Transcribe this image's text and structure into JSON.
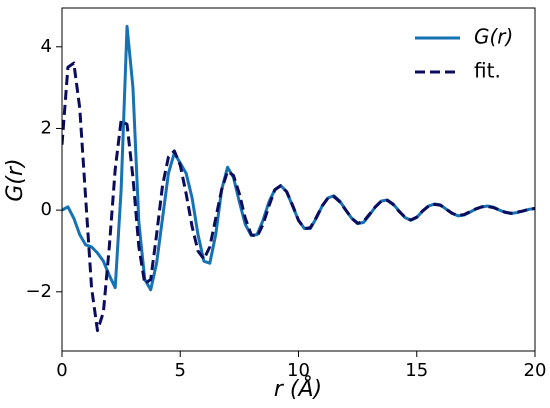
{
  "chart_data": {
    "type": "line",
    "x_label": "r (Å)",
    "y_label": "G(r)",
    "x": [
      0,
      0.25,
      0.5,
      0.75,
      1,
      1.25,
      1.5,
      1.75,
      2,
      2.25,
      2.5,
      2.75,
      3,
      3.25,
      3.5,
      3.75,
      4,
      4.25,
      4.5,
      4.75,
      5,
      5.25,
      5.5,
      5.75,
      6,
      6.25,
      6.5,
      6.75,
      7,
      7.25,
      7.5,
      7.75,
      8,
      8.25,
      8.5,
      8.75,
      9,
      9.25,
      9.5,
      9.75,
      10,
      10.25,
      10.5,
      10.75,
      11,
      11.25,
      11.5,
      11.75,
      12,
      12.25,
      12.5,
      12.75,
      13,
      13.25,
      13.5,
      13.75,
      14,
      14.25,
      14.5,
      14.75,
      15,
      15.25,
      15.5,
      15.75,
      16,
      16.25,
      16.5,
      16.75,
      17,
      17.25,
      17.5,
      17.75,
      18,
      18.25,
      18.5,
      18.75,
      19,
      19.25,
      19.5,
      19.75,
      20
    ],
    "series": [
      {
        "name": "G(r)",
        "color": "#1572b3",
        "dash": false,
        "values": [
          0,
          0.08,
          -0.2,
          -0.6,
          -0.85,
          -0.9,
          -1.05,
          -1.25,
          -1.6,
          -1.9,
          0.5,
          4.5,
          3.0,
          -0.3,
          -1.7,
          -1.95,
          -1.3,
          -0.2,
          0.9,
          1.4,
          1.15,
          0.9,
          0.3,
          -0.6,
          -1.25,
          -1.3,
          -0.6,
          0.5,
          1.05,
          0.8,
          0.2,
          -0.35,
          -0.62,
          -0.6,
          -0.25,
          0.2,
          0.5,
          0.6,
          0.45,
          0.1,
          -0.25,
          -0.45,
          -0.45,
          -0.2,
          0.1,
          0.3,
          0.35,
          0.22,
          0,
          -0.2,
          -0.33,
          -0.3,
          -0.12,
          0.08,
          0.22,
          0.25,
          0.15,
          -0.02,
          -0.18,
          -0.25,
          -0.18,
          -0.02,
          0.1,
          0.15,
          0.13,
          0.02,
          -0.08,
          -0.14,
          -0.12,
          -0.05,
          0.03,
          0.08,
          0.1,
          0.07,
          0,
          -0.06,
          -0.08,
          -0.06,
          -0.02,
          0.02,
          0.04
        ]
      },
      {
        "name": "fit.",
        "color": "#0c0c5e",
        "dash": true,
        "values": [
          1.6,
          3.5,
          3.6,
          2.5,
          0.3,
          -1.9,
          -2.95,
          -2.5,
          -0.9,
          1.0,
          2.2,
          2.1,
          0.8,
          -0.9,
          -1.8,
          -1.7,
          -0.6,
          0.6,
          1.3,
          1.45,
          1.1,
          0.4,
          -0.4,
          -1.0,
          -1.2,
          -0.9,
          -0.2,
          0.5,
          0.95,
          0.85,
          0.4,
          -0.2,
          -0.6,
          -0.65,
          -0.35,
          0.1,
          0.5,
          0.6,
          0.45,
          0.12,
          -0.25,
          -0.45,
          -0.43,
          -0.18,
          0.1,
          0.3,
          0.33,
          0.2,
          0,
          -0.2,
          -0.32,
          -0.28,
          -0.1,
          0.08,
          0.22,
          0.24,
          0.14,
          -0.03,
          -0.17,
          -0.24,
          -0.17,
          -0.02,
          0.1,
          0.14,
          0.12,
          0.02,
          -0.08,
          -0.13,
          -0.11,
          -0.04,
          0.03,
          0.08,
          0.09,
          0.06,
          0,
          -0.05,
          -0.08,
          -0.05,
          -0.02,
          0.02,
          0.04
        ]
      }
    ],
    "xlim": [
      0,
      20
    ],
    "ylim": [
      -3.45,
      4.95
    ],
    "xticks": [
      0,
      5,
      10,
      15,
      20
    ],
    "yticks": [
      {
        "value": -2,
        "label": "−2"
      },
      0,
      2,
      4
    ],
    "grid": false,
    "legend": "upper-right"
  }
}
